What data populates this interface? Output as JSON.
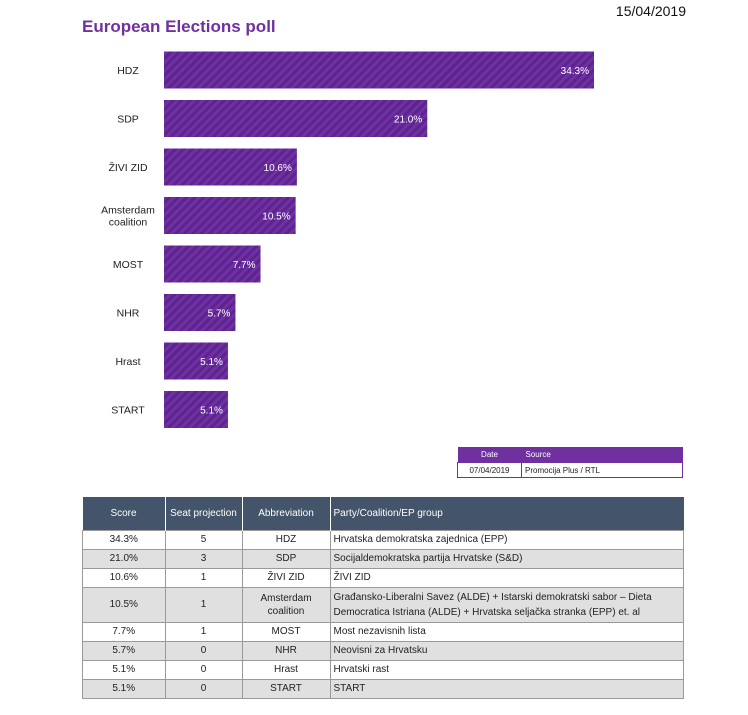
{
  "header": {
    "date": "15/04/2019",
    "title": "European Elections poll"
  },
  "colors": {
    "bar": "#7030a0",
    "bar_stripe": "#5c2490",
    "table_header": "#44546a"
  },
  "chart_data": {
    "type": "bar",
    "orientation": "horizontal",
    "categories": [
      "HDZ",
      "SDP",
      "ŽIVI ZID",
      "Amsterdam coalition",
      "MOST",
      "NHR",
      "Hrast",
      "START"
    ],
    "values": [
      34.3,
      21.0,
      10.6,
      10.5,
      7.7,
      5.7,
      5.1,
      5.1
    ],
    "value_labels": [
      "34.3%",
      "21.0%",
      "10.6%",
      "10.5%",
      "7.7%",
      "5.7%",
      "5.1%",
      "5.1%"
    ],
    "title": "European Elections poll",
    "xlim": [
      0,
      36
    ]
  },
  "source_table": {
    "headers": [
      "Date",
      "Source"
    ],
    "rows": [
      [
        "07/04/2019",
        "Promocija Plus / RTL"
      ]
    ]
  },
  "results_table": {
    "headers": [
      "Score",
      "Seat projection",
      "Abbreviation",
      "Party/Coalition/EP group"
    ],
    "rows": [
      [
        "34.3%",
        "5",
        "HDZ",
        "Hrvatska demokratska zajednica (EPP)"
      ],
      [
        "21.0%",
        "3",
        "SDP",
        "Socijaldemokratska partija Hrvatske (S&D)"
      ],
      [
        "10.6%",
        "1",
        "ŽIVI ZID",
        "ŽIVI ZID"
      ],
      [
        "10.5%",
        "1",
        "Amsterdam coalition",
        "Građansko-Liberalni Savez (ALDE) + Istarski demokratski sabor – Dieta Democratica Istriana (ALDE) + Hrvatska seljačka stranka (EPP) et. al"
      ],
      [
        "7.7%",
        "1",
        "MOST",
        "Most nezavisnih lista"
      ],
      [
        "5.7%",
        "0",
        "NHR",
        "Neovisni za Hrvatsku"
      ],
      [
        "5.1%",
        "0",
        "Hrast",
        "Hrvatski rast"
      ],
      [
        "5.1%",
        "0",
        "START",
        "START"
      ]
    ]
  }
}
